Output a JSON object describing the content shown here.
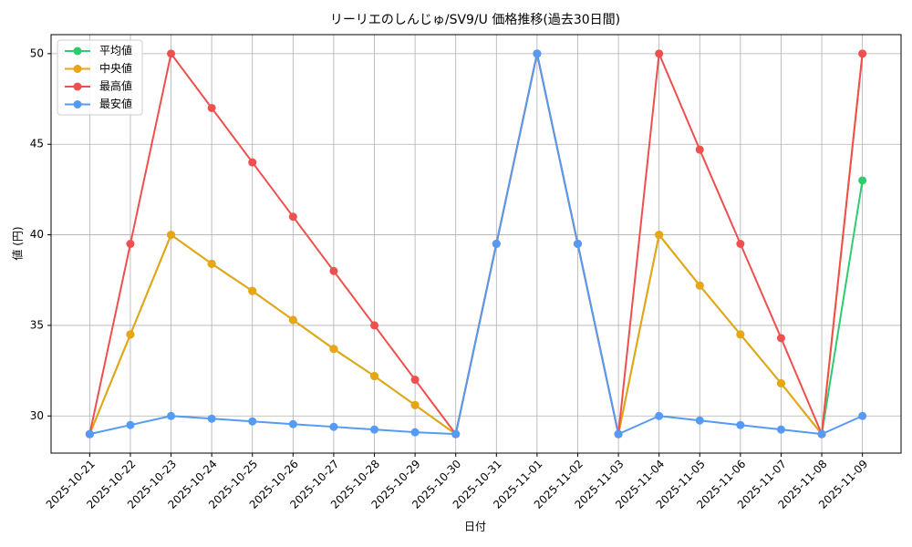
{
  "chart_data": {
    "type": "line",
    "title": "リーリエのしんじゅ/SV9/U 価格推移(過去30日間)",
    "x_label": "日付",
    "y_label": "値 (円)",
    "x": [
      "2025-10-21",
      "2025-10-22",
      "2025-10-23",
      "2025-10-24",
      "2025-10-25",
      "2025-10-26",
      "2025-10-27",
      "2025-10-28",
      "2025-10-29",
      "2025-10-30",
      "2025-10-31",
      "2025-11-01",
      "2025-11-02",
      "2025-11-03",
      "2025-11-04",
      "2025-11-05",
      "2025-11-06",
      "2025-11-07",
      "2025-11-08",
      "2025-11-09"
    ],
    "series": [
      {
        "name": "平均値",
        "color": "#2ecc71",
        "values": [
          29,
          34.5,
          40,
          38.4,
          36.9,
          35.3,
          33.7,
          32.2,
          30.6,
          29,
          39.5,
          50,
          39.5,
          29,
          40,
          37.2,
          34.5,
          31.8,
          29,
          43
        ]
      },
      {
        "name": "中央値",
        "color": "#e9a512",
        "values": [
          29,
          34.5,
          40,
          38.4,
          36.9,
          35.3,
          33.7,
          32.2,
          30.6,
          29,
          39.5,
          50,
          39.5,
          29,
          40,
          37.2,
          34.5,
          31.8,
          29,
          50
        ]
      },
      {
        "name": "最高値",
        "color": "#ef4f4f",
        "values": [
          29,
          39.5,
          50,
          47,
          44,
          41,
          38,
          35,
          32,
          29,
          39.5,
          50,
          39.5,
          29,
          50,
          44.7,
          39.5,
          34.3,
          29,
          50
        ]
      },
      {
        "name": "最安値",
        "color": "#559af5",
        "values": [
          29,
          29.5,
          30,
          29.85,
          29.7,
          29.55,
          29.4,
          29.25,
          29.1,
          29,
          39.5,
          50,
          39.5,
          29,
          30,
          29.75,
          29.5,
          29.25,
          29,
          30
        ]
      }
    ],
    "ylim": [
      27.95,
      51.05
    ],
    "yticks": [
      30,
      35,
      40,
      45,
      50
    ],
    "grid": true,
    "legend": "upper left"
  }
}
